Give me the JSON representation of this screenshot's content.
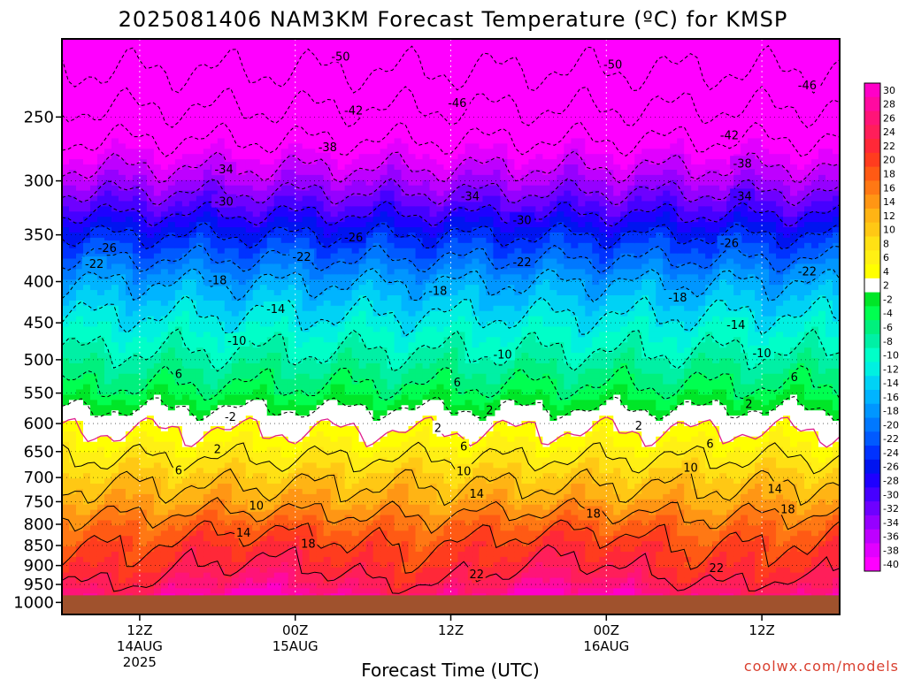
{
  "title": "2025081406 NAM3KM Forecast Temperature (ºC) for KMSP",
  "credit": "coolwx.com/models",
  "chart_data": {
    "type": "heatmap",
    "title": "2025081406 NAM3KM Forecast Temperature (ºC) for KMSP",
    "xlabel": "Forecast Time (UTC)",
    "ylabel": "",
    "y_ticks": [
      250,
      300,
      350,
      400,
      450,
      500,
      550,
      600,
      650,
      700,
      750,
      800,
      850,
      900,
      950,
      1000
    ],
    "y_scale": "log-pressure (inverted)",
    "x_ticks": [
      {
        "hour": 6,
        "lines": [
          "12Z",
          "14AUG",
          "2025"
        ]
      },
      {
        "hour": 18,
        "lines": [
          "00Z",
          "15AUG"
        ]
      },
      {
        "hour": 30,
        "lines": [
          "12Z"
        ]
      },
      {
        "hour": 42,
        "lines": [
          "00Z",
          "16AUG"
        ]
      },
      {
        "hour": 54,
        "lines": [
          "12Z"
        ]
      }
    ],
    "x_range_hours": [
      0,
      60
    ],
    "grid": true,
    "colorbar": {
      "labels": [
        "30",
        "28",
        "26",
        "24",
        "22",
        "20",
        "18",
        "16",
        "14",
        "12",
        "10",
        "8",
        "6",
        "4",
        "2",
        "-2",
        "-4",
        "-6",
        "-8",
        "-10",
        "-12",
        "-14",
        "-16",
        "-18",
        "-20",
        "-22",
        "-24",
        "-26",
        "-28",
        "-30",
        "-32",
        "-34",
        "-36",
        "-38",
        "-40"
      ],
      "colors": [
        "#ff00c8",
        "#ff0aa0",
        "#ff1478",
        "#ff1e5a",
        "#ff2838",
        "#ff3c1e",
        "#ff5a14",
        "#ff7814",
        "#ff9614",
        "#ffb414",
        "#ffc814",
        "#ffe114",
        "#fff014",
        "#ffff00",
        "#ffffff",
        "#00e628",
        "#00ff50",
        "#00f07d",
        "#00f0a5",
        "#00ffc8",
        "#00f0e1",
        "#00d2f5",
        "#00b4ff",
        "#0096ff",
        "#0078ff",
        "#005aff",
        "#0032ff",
        "#0014f0",
        "#1e00ff",
        "#4600ff",
        "#6e00ff",
        "#9600ff",
        "#be00ff",
        "#e100ff",
        "#ff00ff"
      ]
    },
    "temperature_profile": [
      {
        "p": 200,
        "t": -53
      },
      {
        "p": 250,
        "t": -45
      },
      {
        "p": 300,
        "t": -36
      },
      {
        "p": 350,
        "t": -26
      },
      {
        "p": 400,
        "t": -18
      },
      {
        "p": 450,
        "t": -13
      },
      {
        "p": 500,
        "t": -9
      },
      {
        "p": 550,
        "t": -5
      },
      {
        "p": 600,
        "t": 1
      },
      {
        "p": 650,
        "t": 5
      },
      {
        "p": 700,
        "t": 9
      },
      {
        "p": 750,
        "t": 12
      },
      {
        "p": 800,
        "t": 16
      },
      {
        "p": 850,
        "t": 19
      },
      {
        "p": 900,
        "t": 21
      },
      {
        "p": 950,
        "t": 24
      },
      {
        "p": 980,
        "t": 27
      }
    ],
    "ground_pressure": 980,
    "ground_color": "#a0522d",
    "contour_labels": [
      {
        "text": "-50",
        "hour": 21.5,
        "p": 210
      },
      {
        "text": "-50",
        "hour": 42.5,
        "p": 215
      },
      {
        "text": "-46",
        "hour": 30.5,
        "p": 240
      },
      {
        "text": "-46",
        "hour": 57.5,
        "p": 228
      },
      {
        "text": "-42",
        "hour": 22.5,
        "p": 245
      },
      {
        "text": "-42",
        "hour": 51.5,
        "p": 263
      },
      {
        "text": "-38",
        "hour": 20.5,
        "p": 272
      },
      {
        "text": "-38",
        "hour": 52.5,
        "p": 285
      },
      {
        "text": "-34",
        "hour": 12.5,
        "p": 290
      },
      {
        "text": "-34",
        "hour": 31.5,
        "p": 313
      },
      {
        "text": "-34",
        "hour": 52.5,
        "p": 313
      },
      {
        "text": "-30",
        "hour": 12.5,
        "p": 318
      },
      {
        "text": "-30",
        "hour": 35.5,
        "p": 335
      },
      {
        "text": "-26",
        "hour": 3.5,
        "p": 363
      },
      {
        "text": "-26",
        "hour": 22.5,
        "p": 352
      },
      {
        "text": "-26",
        "hour": 51.5,
        "p": 358
      },
      {
        "text": "-22",
        "hour": 2.5,
        "p": 380
      },
      {
        "text": "-22",
        "hour": 18.5,
        "p": 372
      },
      {
        "text": "-22",
        "hour": 35.5,
        "p": 378
      },
      {
        "text": "-22",
        "hour": 57.5,
        "p": 388
      },
      {
        "text": "-18",
        "hour": 12.0,
        "p": 398
      },
      {
        "text": "-18",
        "hour": 29.0,
        "p": 410
      },
      {
        "text": "-18",
        "hour": 47.5,
        "p": 418
      },
      {
        "text": "-14",
        "hour": 16.5,
        "p": 432
      },
      {
        "text": "-14",
        "hour": 52.0,
        "p": 452
      },
      {
        "text": "-10",
        "hour": 13.5,
        "p": 473
      },
      {
        "text": "-10",
        "hour": 34.0,
        "p": 492
      },
      {
        "text": "-10",
        "hour": 54.0,
        "p": 490
      },
      {
        "text": "6",
        "hour": 9.0,
        "p": 520
      },
      {
        "text": "6",
        "hour": 30.5,
        "p": 533
      },
      {
        "text": "6",
        "hour": 56.5,
        "p": 525
      },
      {
        "text": "2",
        "hour": 33.0,
        "p": 577
      },
      {
        "text": "2",
        "hour": 53.0,
        "p": 567
      },
      {
        "text": "-2",
        "hour": 13.0,
        "p": 588
      },
      {
        "text": "2",
        "hour": 29.0,
        "p": 607
      },
      {
        "text": "2",
        "hour": 44.5,
        "p": 603
      },
      {
        "text": "2",
        "hour": 12.0,
        "p": 645
      },
      {
        "text": "6",
        "hour": 31.0,
        "p": 640
      },
      {
        "text": "6",
        "hour": 50.0,
        "p": 635
      },
      {
        "text": "6",
        "hour": 9.0,
        "p": 685
      },
      {
        "text": "10",
        "hour": 31.0,
        "p": 687
      },
      {
        "text": "10",
        "hour": 48.5,
        "p": 680
      },
      {
        "text": "14",
        "hour": 32.0,
        "p": 732
      },
      {
        "text": "14",
        "hour": 55.0,
        "p": 722
      },
      {
        "text": "10",
        "hour": 15.0,
        "p": 758
      },
      {
        "text": "18",
        "hour": 41.0,
        "p": 775
      },
      {
        "text": "18",
        "hour": 56.0,
        "p": 765
      },
      {
        "text": "14",
        "hour": 14.0,
        "p": 818
      },
      {
        "text": "18",
        "hour": 19.0,
        "p": 845
      },
      {
        "text": "22",
        "hour": 32.0,
        "p": 922
      },
      {
        "text": "22",
        "hour": 50.5,
        "p": 905
      }
    ]
  }
}
